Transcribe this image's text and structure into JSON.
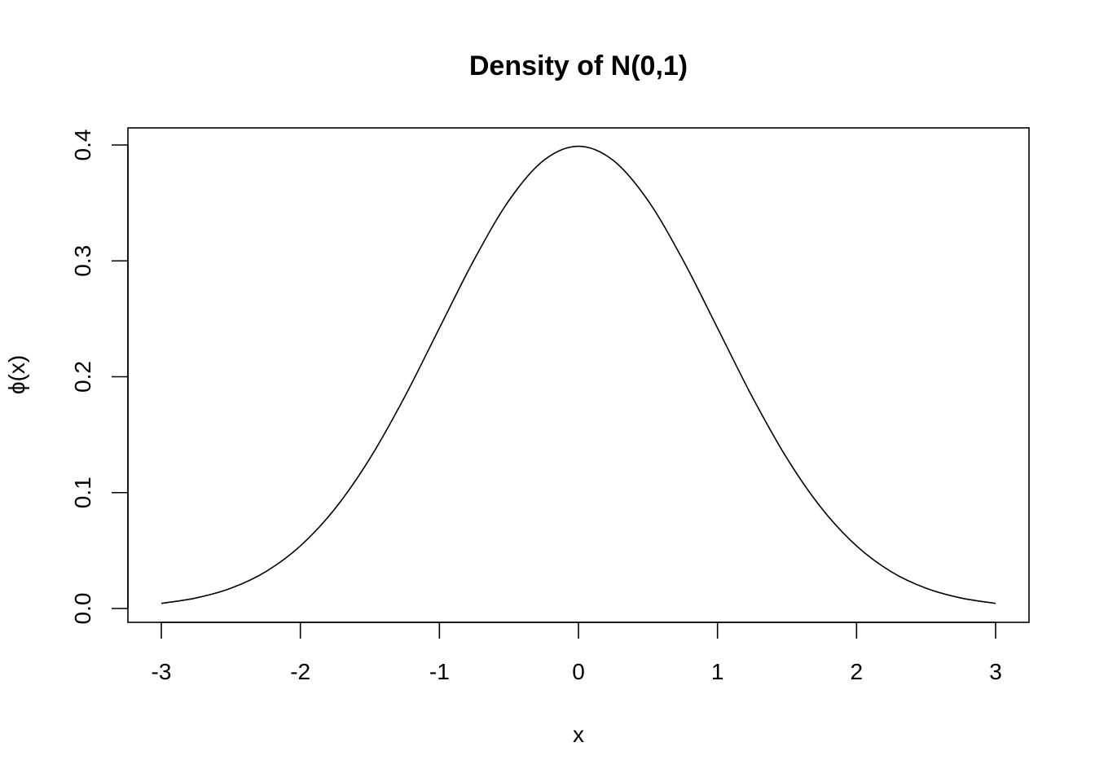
{
  "chart_data": {
    "type": "line",
    "title": "Density of N(0,1)",
    "xlabel": "x",
    "ylabel": "ϕ(x)",
    "xlim": [
      -3,
      3
    ],
    "ylim": [
      0,
      0.4
    ],
    "x_ticks": [
      -3,
      -2,
      -1,
      0,
      1,
      2,
      3
    ],
    "x_tick_labels": [
      "-3",
      "-2",
      "-1",
      "0",
      "1",
      "2",
      "3"
    ],
    "y_ticks": [
      0.0,
      0.1,
      0.2,
      0.3,
      0.4
    ],
    "y_tick_labels": [
      "0.0",
      "0.1",
      "0.2",
      "0.3",
      "0.4"
    ],
    "grid": false,
    "series": [
      {
        "x": [
          -3.0,
          -2.75,
          -2.5,
          -2.25,
          -2.0,
          -1.75,
          -1.5,
          -1.25,
          -1.0,
          -0.75,
          -0.5,
          -0.25,
          0.0,
          0.25,
          0.5,
          0.75,
          1.0,
          1.25,
          1.5,
          1.75,
          2.0,
          2.25,
          2.5,
          2.75,
          3.0
        ],
        "y": [
          0.0044,
          0.0091,
          0.0175,
          0.0317,
          0.054,
          0.0863,
          0.1295,
          0.1826,
          0.242,
          0.3011,
          0.3521,
          0.3867,
          0.3989,
          0.3867,
          0.3521,
          0.3011,
          0.242,
          0.1826,
          0.1295,
          0.0863,
          0.054,
          0.0317,
          0.0175,
          0.0091,
          0.0044
        ]
      }
    ]
  }
}
